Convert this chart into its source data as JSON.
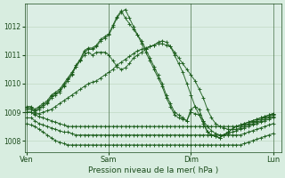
{
  "title": "",
  "xlabel": "Pression niveau de la mer( hPa )",
  "bg_color": "#d8ede0",
  "plot_bg_color": "#dceee5",
  "grid_color": "#aacaaa",
  "text_color": "#1a4a1a",
  "yticks": [
    1008,
    1009,
    1010,
    1011,
    1012
  ],
  "ylim": [
    1007.6,
    1012.8
  ],
  "xtick_labels": [
    "Ven",
    "Sam",
    "Dim",
    "Lun"
  ],
  "xtick_pos": [
    0,
    40,
    80,
    120
  ],
  "xlim": [
    -1,
    124
  ],
  "series": [
    {
      "x": [
        0,
        2,
        4,
        6,
        8,
        10,
        12,
        14,
        16,
        18,
        20,
        22,
        24,
        26,
        28,
        30,
        32,
        34,
        36,
        38,
        40,
        42,
        44,
        46,
        48,
        50,
        52,
        54,
        56,
        58,
        60,
        62,
        64,
        66,
        68,
        70,
        72,
        74,
        76,
        78,
        80,
        82,
        84,
        86,
        88,
        90,
        92,
        94,
        96,
        98,
        100,
        102,
        104,
        106,
        108,
        110,
        112,
        114,
        116,
        118,
        120
      ],
      "y": [
        1009.1,
        1009.1,
        1009.0,
        1009.1,
        1009.2,
        1009.3,
        1009.5,
        1009.6,
        1009.7,
        1009.9,
        1010.1,
        1010.3,
        1010.6,
        1010.8,
        1011.1,
        1011.2,
        1011.2,
        1011.3,
        1011.5,
        1011.6,
        1011.7,
        1012.0,
        1012.3,
        1012.5,
        1012.6,
        1012.3,
        1012.0,
        1011.7,
        1011.4,
        1011.1,
        1010.8,
        1010.5,
        1010.2,
        1009.9,
        1009.5,
        1009.2,
        1008.9,
        1008.8,
        1008.75,
        1008.7,
        1009.1,
        1009.2,
        1009.1,
        1008.7,
        1008.3,
        1008.2,
        1008.15,
        1008.1,
        1008.2,
        1008.3,
        1008.4,
        1008.5,
        1008.55,
        1008.6,
        1008.65,
        1008.7,
        1008.75,
        1008.8,
        1008.85,
        1008.9,
        1008.95
      ],
      "marker": "+"
    },
    {
      "x": [
        0,
        2,
        4,
        6,
        8,
        10,
        12,
        14,
        16,
        18,
        20,
        22,
        24,
        26,
        28,
        30,
        32,
        34,
        36,
        38,
        40,
        42,
        44,
        46,
        48,
        50,
        52,
        54,
        56,
        58,
        60,
        62,
        64,
        66,
        68,
        70,
        72,
        74,
        76,
        78,
        80,
        82,
        84,
        86,
        88,
        90,
        92,
        94,
        96,
        98,
        100,
        102,
        104,
        106,
        108,
        110,
        112,
        114,
        116,
        118,
        120
      ],
      "y": [
        1009.15,
        1009.15,
        1009.05,
        1009.15,
        1009.25,
        1009.35,
        1009.55,
        1009.65,
        1009.75,
        1009.95,
        1010.15,
        1010.35,
        1010.65,
        1010.85,
        1011.15,
        1011.25,
        1011.25,
        1011.35,
        1011.55,
        1011.65,
        1011.75,
        1012.05,
        1012.35,
        1012.55,
        1012.3,
        1012.1,
        1011.9,
        1011.7,
        1011.5,
        1011.2,
        1010.9,
        1010.6,
        1010.3,
        1010.0,
        1009.6,
        1009.3,
        1009.0,
        1008.9,
        1008.8,
        1008.7,
        1009.0,
        1008.95,
        1008.9,
        1008.6,
        1008.3,
        1008.2,
        1008.15,
        1008.1,
        1008.2,
        1008.3,
        1008.4,
        1008.5,
        1008.55,
        1008.6,
        1008.65,
        1008.7,
        1008.75,
        1008.8,
        1008.85,
        1008.9,
        1008.95
      ],
      "marker": "+"
    },
    {
      "x": [
        0,
        2,
        4,
        6,
        8,
        10,
        12,
        14,
        16,
        18,
        20,
        22,
        24,
        26,
        28,
        30,
        32,
        34,
        36,
        38,
        40,
        42,
        44,
        46,
        48,
        50,
        52,
        54,
        56,
        58,
        60,
        62,
        64,
        66,
        68,
        70,
        72,
        74,
        76,
        78,
        80,
        82,
        84,
        86,
        88,
        90,
        92,
        94,
        96,
        98,
        100,
        102,
        104,
        106,
        108,
        110,
        112,
        114,
        116,
        118,
        120
      ],
      "y": [
        1009.2,
        1009.2,
        1009.1,
        1009.2,
        1009.3,
        1009.4,
        1009.6,
        1009.7,
        1009.8,
        1010.0,
        1010.2,
        1010.4,
        1010.6,
        1010.8,
        1011.0,
        1011.1,
        1011.0,
        1011.1,
        1011.1,
        1011.1,
        1011.0,
        1010.8,
        1010.6,
        1010.5,
        1010.55,
        1010.7,
        1010.9,
        1011.0,
        1011.1,
        1011.2,
        1011.3,
        1011.35,
        1011.4,
        1011.4,
        1011.35,
        1011.3,
        1011.1,
        1010.9,
        1010.7,
        1010.5,
        1010.3,
        1010.1,
        1009.8,
        1009.5,
        1009.1,
        1008.8,
        1008.6,
        1008.5,
        1008.45,
        1008.4,
        1008.4,
        1008.4,
        1008.45,
        1008.5,
        1008.55,
        1008.6,
        1008.65,
        1008.7,
        1008.75,
        1008.8,
        1008.85
      ],
      "marker": "+"
    },
    {
      "x": [
        0,
        2,
        4,
        6,
        8,
        10,
        12,
        14,
        16,
        18,
        20,
        22,
        24,
        26,
        28,
        30,
        32,
        34,
        36,
        38,
        40,
        42,
        44,
        46,
        48,
        50,
        52,
        54,
        56,
        58,
        60,
        62,
        64,
        66,
        68,
        70,
        72,
        74,
        76,
        78,
        80,
        82,
        84,
        86,
        88,
        90,
        92,
        94,
        96,
        98,
        100,
        102,
        104,
        106,
        108,
        110,
        112,
        114,
        116,
        118,
        120
      ],
      "y": [
        1009.0,
        1009.0,
        1008.95,
        1008.95,
        1009.0,
        1009.05,
        1009.1,
        1009.2,
        1009.3,
        1009.4,
        1009.5,
        1009.6,
        1009.7,
        1009.8,
        1009.9,
        1010.0,
        1010.05,
        1010.1,
        1010.2,
        1010.3,
        1010.4,
        1010.5,
        1010.65,
        1010.75,
        1010.85,
        1010.95,
        1011.05,
        1011.15,
        1011.2,
        1011.25,
        1011.3,
        1011.35,
        1011.45,
        1011.5,
        1011.45,
        1011.3,
        1011.0,
        1010.7,
        1010.4,
        1010.0,
        1009.6,
        1009.2,
        1008.9,
        1008.7,
        1008.5,
        1008.35,
        1008.25,
        1008.2,
        1008.2,
        1008.25,
        1008.3,
        1008.35,
        1008.4,
        1008.45,
        1008.5,
        1008.55,
        1008.6,
        1008.65,
        1008.7,
        1008.75,
        1008.8
      ],
      "marker": "+"
    },
    {
      "x": [
        0,
        2,
        4,
        6,
        8,
        10,
        12,
        14,
        16,
        18,
        20,
        22,
        24,
        26,
        28,
        30,
        32,
        34,
        36,
        38,
        40,
        42,
        44,
        46,
        48,
        50,
        52,
        54,
        56,
        58,
        60,
        62,
        64,
        66,
        68,
        70,
        72,
        74,
        76,
        78,
        80,
        82,
        84,
        86,
        88,
        90,
        92,
        94,
        96,
        98,
        100,
        102,
        104,
        106,
        108,
        110,
        112,
        114,
        116,
        118,
        120
      ],
      "y": [
        1009.0,
        1009.0,
        1008.9,
        1008.85,
        1008.8,
        1008.75,
        1008.7,
        1008.65,
        1008.6,
        1008.55,
        1008.5,
        1008.5,
        1008.5,
        1008.5,
        1008.5,
        1008.5,
        1008.5,
        1008.5,
        1008.5,
        1008.5,
        1008.5,
        1008.5,
        1008.5,
        1008.5,
        1008.5,
        1008.5,
        1008.5,
        1008.5,
        1008.5,
        1008.5,
        1008.5,
        1008.5,
        1008.5,
        1008.5,
        1008.5,
        1008.5,
        1008.5,
        1008.5,
        1008.5,
        1008.5,
        1008.5,
        1008.5,
        1008.5,
        1008.5,
        1008.5,
        1008.5,
        1008.5,
        1008.5,
        1008.5,
        1008.5,
        1008.5,
        1008.5,
        1008.5,
        1008.55,
        1008.6,
        1008.65,
        1008.7,
        1008.75,
        1008.8,
        1008.85,
        1008.9
      ],
      "marker": "+"
    },
    {
      "x": [
        0,
        2,
        4,
        6,
        8,
        10,
        12,
        14,
        16,
        18,
        20,
        22,
        24,
        26,
        28,
        30,
        32,
        34,
        36,
        38,
        40,
        42,
        44,
        46,
        48,
        50,
        52,
        54,
        56,
        58,
        60,
        62,
        64,
        66,
        68,
        70,
        72,
        74,
        76,
        78,
        80,
        82,
        84,
        86,
        88,
        90,
        92,
        94,
        96,
        98,
        100,
        102,
        104,
        106,
        108,
        110,
        112,
        114,
        116,
        118,
        120
      ],
      "y": [
        1008.8,
        1008.8,
        1008.7,
        1008.6,
        1008.55,
        1008.5,
        1008.45,
        1008.4,
        1008.35,
        1008.3,
        1008.3,
        1008.25,
        1008.2,
        1008.2,
        1008.2,
        1008.2,
        1008.2,
        1008.2,
        1008.2,
        1008.2,
        1008.2,
        1008.2,
        1008.2,
        1008.2,
        1008.2,
        1008.2,
        1008.2,
        1008.2,
        1008.2,
        1008.2,
        1008.2,
        1008.2,
        1008.2,
        1008.2,
        1008.2,
        1008.2,
        1008.2,
        1008.2,
        1008.2,
        1008.2,
        1008.2,
        1008.2,
        1008.2,
        1008.2,
        1008.2,
        1008.2,
        1008.2,
        1008.2,
        1008.2,
        1008.2,
        1008.2,
        1008.2,
        1008.2,
        1008.25,
        1008.3,
        1008.35,
        1008.4,
        1008.45,
        1008.5,
        1008.55,
        1008.6
      ],
      "marker": "+"
    },
    {
      "x": [
        0,
        2,
        4,
        6,
        8,
        10,
        12,
        14,
        16,
        18,
        20,
        22,
        24,
        26,
        28,
        30,
        32,
        34,
        36,
        38,
        40,
        42,
        44,
        46,
        48,
        50,
        52,
        54,
        56,
        58,
        60,
        62,
        64,
        66,
        68,
        70,
        72,
        74,
        76,
        78,
        80,
        82,
        84,
        86,
        88,
        90,
        92,
        94,
        96,
        98,
        100,
        102,
        104,
        106,
        108,
        110,
        112,
        114,
        116,
        118,
        120
      ],
      "y": [
        1008.6,
        1008.55,
        1008.5,
        1008.4,
        1008.3,
        1008.2,
        1008.1,
        1008.0,
        1007.95,
        1007.9,
        1007.85,
        1007.85,
        1007.85,
        1007.85,
        1007.85,
        1007.85,
        1007.85,
        1007.85,
        1007.85,
        1007.85,
        1007.85,
        1007.85,
        1007.85,
        1007.85,
        1007.85,
        1007.85,
        1007.85,
        1007.85,
        1007.85,
        1007.85,
        1007.85,
        1007.85,
        1007.85,
        1007.85,
        1007.85,
        1007.85,
        1007.85,
        1007.85,
        1007.85,
        1007.85,
        1007.85,
        1007.85,
        1007.85,
        1007.85,
        1007.85,
        1007.85,
        1007.85,
        1007.85,
        1007.85,
        1007.85,
        1007.85,
        1007.85,
        1007.85,
        1007.9,
        1007.95,
        1008.0,
        1008.05,
        1008.1,
        1008.15,
        1008.2,
        1008.25
      ],
      "marker": "+"
    }
  ]
}
